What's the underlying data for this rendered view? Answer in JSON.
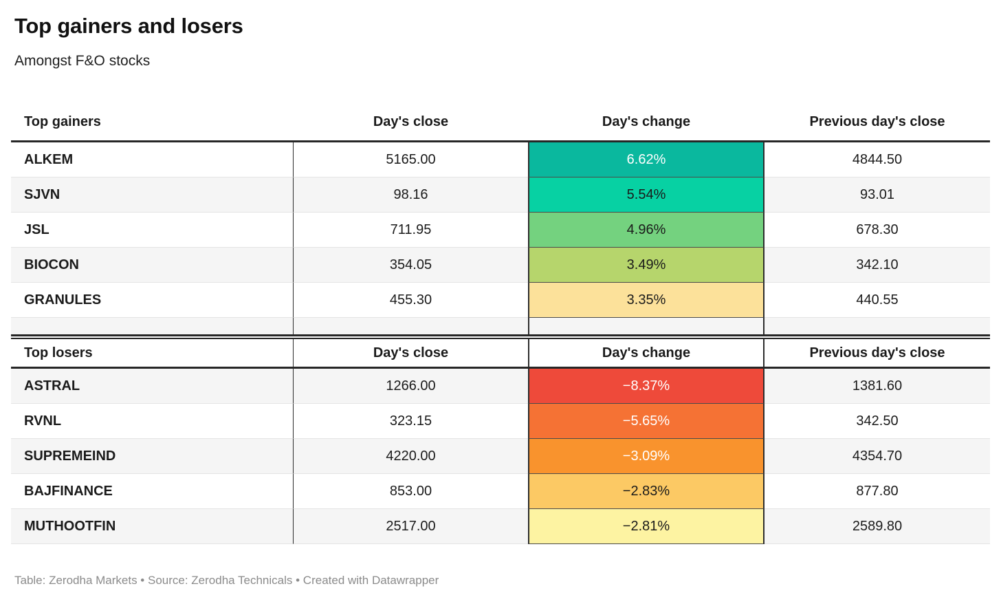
{
  "title": "Top gainers and losers",
  "subtitle": "Amongst F&O stocks",
  "footer": "Table: Zerodha Markets • Source: Zerodha Technicals • Created with Datawrapper",
  "gainers": {
    "headers": {
      "name": "Top gainers",
      "close": "Day's close",
      "change": "Day's change",
      "prev": "Previous day's close"
    },
    "rows": [
      {
        "name": "ALKEM",
        "close": "5165.00",
        "change": "6.62%",
        "prev": "4844.50",
        "change_bg": "#0ab89e",
        "change_text": "#ffffff"
      },
      {
        "name": "SJVN",
        "close": "98.16",
        "change": "5.54%",
        "prev": "93.01",
        "change_bg": "#07d1a3",
        "change_text": "#1a1a1a"
      },
      {
        "name": "JSL",
        "close": "711.95",
        "change": "4.96%",
        "prev": "678.30",
        "change_bg": "#74d27f",
        "change_text": "#1a1a1a"
      },
      {
        "name": "BIOCON",
        "close": "354.05",
        "change": "3.49%",
        "prev": "342.10",
        "change_bg": "#b6d56c",
        "change_text": "#1a1a1a"
      },
      {
        "name": "GRANULES",
        "close": "455.30",
        "change": "3.35%",
        "prev": "440.55",
        "change_bg": "#fce19a",
        "change_text": "#1a1a1a"
      }
    ]
  },
  "losers": {
    "headers": {
      "name": "Top losers",
      "close": "Day's close",
      "change": "Day's change",
      "prev": "Previous day's close"
    },
    "rows": [
      {
        "name": "ASTRAL",
        "close": "1266.00",
        "change": "−8.37%",
        "prev": "1381.60",
        "change_bg": "#ee4a3a",
        "change_text": "#ffffff"
      },
      {
        "name": "RVNL",
        "close": "323.15",
        "change": "−5.65%",
        "prev": "342.50",
        "change_bg": "#f57234",
        "change_text": "#ffffff"
      },
      {
        "name": "SUPREMEIND",
        "close": "4220.00",
        "change": "−3.09%",
        "prev": "4354.70",
        "change_bg": "#f9932d",
        "change_text": "#ffffff"
      },
      {
        "name": "BAJFINANCE",
        "close": "853.00",
        "change": "−2.83%",
        "prev": "877.80",
        "change_bg": "#fcc964",
        "change_text": "#1a1a1a"
      },
      {
        "name": "MUTHOOTFIN",
        "close": "2517.00",
        "change": "−2.81%",
        "prev": "2589.80",
        "change_bg": "#fdf3a2",
        "change_text": "#1a1a1a"
      }
    ]
  },
  "chart_data": [
    {
      "type": "table",
      "title": "Top gainers",
      "columns": [
        "Top gainers",
        "Day's close",
        "Day's change",
        "Previous day's close"
      ],
      "rows": [
        [
          "ALKEM",
          5165.0,
          6.62,
          4844.5
        ],
        [
          "SJVN",
          98.16,
          5.54,
          93.01
        ],
        [
          "JSL",
          711.95,
          4.96,
          678.3
        ],
        [
          "BIOCON",
          354.05,
          3.49,
          342.1
        ],
        [
          "GRANULES",
          455.3,
          3.35,
          440.55
        ]
      ],
      "change_unit": "percent"
    },
    {
      "type": "table",
      "title": "Top losers",
      "columns": [
        "Top losers",
        "Day's close",
        "Day's change",
        "Previous day's close"
      ],
      "rows": [
        [
          "ASTRAL",
          1266.0,
          -8.37,
          1381.6
        ],
        [
          "RVNL",
          323.15,
          -5.65,
          342.5
        ],
        [
          "SUPREMEIND",
          4220.0,
          -3.09,
          4354.7
        ],
        [
          "BAJFINANCE",
          853.0,
          -2.83,
          877.8
        ],
        [
          "MUTHOOTFIN",
          2517.0,
          -2.81,
          2589.8
        ]
      ],
      "change_unit": "percent"
    }
  ]
}
